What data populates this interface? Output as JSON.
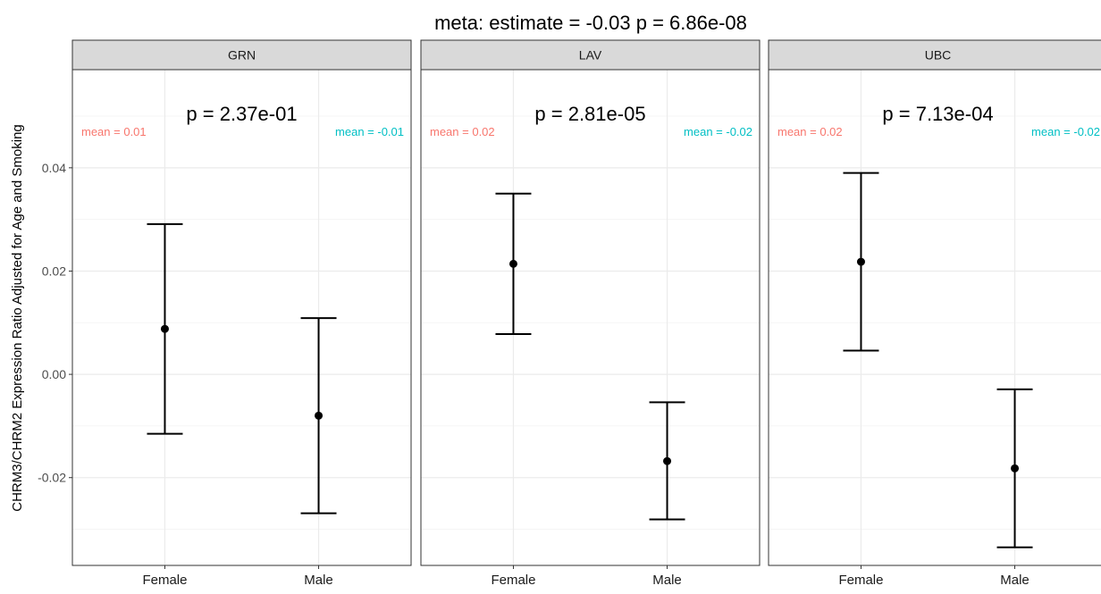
{
  "chart_data": {
    "type": "scatter",
    "subtype": "point-with-errorbars",
    "title": "meta: estimate = -0.03 p = 6.86e-08",
    "ylabel": "CHRM3/CHRM2 Expression Ratio Adjusted for Age and Smoking",
    "xlabel": "",
    "ylim": [
      -0.037,
      0.059
    ],
    "yticks": [
      -0.02,
      0.0,
      0.02,
      0.04
    ],
    "ytick_labels": [
      "-0.02",
      "0.00",
      "0.02",
      "0.04"
    ],
    "categories": [
      "Female",
      "Male"
    ],
    "grid": true,
    "colors": {
      "female_mean": "#f8766d",
      "male_mean": "#00bfc4",
      "strip_bg": "#d9d9d9",
      "point": "#000000"
    },
    "panels": [
      {
        "strip": "GRN",
        "p_label": "p = 2.37e-01",
        "mean_female_label": "mean = 0.01",
        "mean_male_label": "mean = -0.01",
        "points": [
          {
            "category": "Female",
            "y": 0.0088,
            "ymin": -0.0115,
            "ymax": 0.0291
          },
          {
            "category": "Male",
            "y": -0.008,
            "ymin": -0.0269,
            "ymax": 0.0109
          }
        ]
      },
      {
        "strip": "LAV",
        "p_label": "p = 2.81e-05",
        "mean_female_label": "mean = 0.02",
        "mean_male_label": "mean = -0.02",
        "points": [
          {
            "category": "Female",
            "y": 0.0214,
            "ymin": 0.0078,
            "ymax": 0.035
          },
          {
            "category": "Male",
            "y": -0.0168,
            "ymin": -0.0281,
            "ymax": -0.0054
          }
        ]
      },
      {
        "strip": "UBC",
        "p_label": "p = 7.13e-04",
        "mean_female_label": "mean = 0.02",
        "mean_male_label": "mean = -0.02",
        "points": [
          {
            "category": "Female",
            "y": 0.0218,
            "ymin": 0.0046,
            "ymax": 0.039
          },
          {
            "category": "Male",
            "y": -0.0182,
            "ymin": -0.0335,
            "ymax": -0.0029
          }
        ]
      }
    ]
  }
}
